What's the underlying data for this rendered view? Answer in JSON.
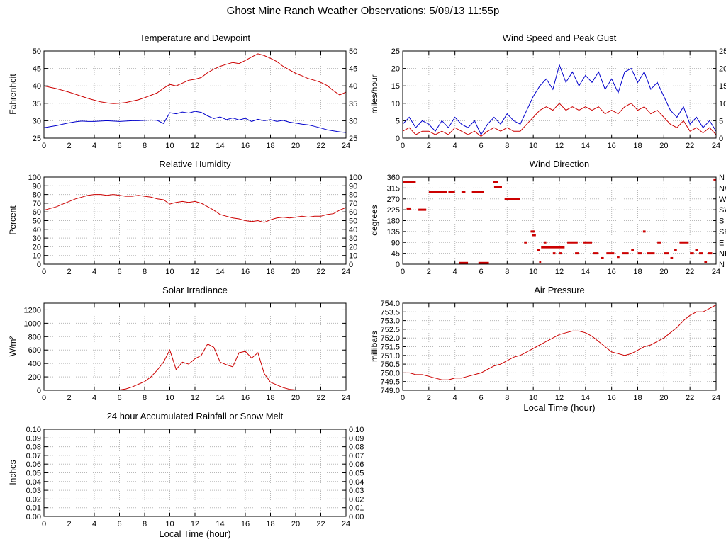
{
  "page_title": "Ghost Mine Ranch Weather Observations: 5/09/13 11:55p",
  "colors": {
    "red": "#cc0000",
    "blue": "#0000cc",
    "grid": "#b8b8b8",
    "axis": "#000000",
    "background": "#ffffff"
  },
  "chart_data": [
    {
      "id": "temperature-dewpoint",
      "type": "line",
      "title": "Temperature and Dewpoint",
      "ylabel": "Fahrenheit",
      "xlabel": "",
      "xlim": [
        0,
        24
      ],
      "xticks": [
        0,
        2,
        4,
        6,
        8,
        10,
        12,
        14,
        16,
        18,
        20,
        22,
        24
      ],
      "ylim": [
        25,
        50
      ],
      "yticks": [
        25,
        30,
        35,
        40,
        45,
        50
      ],
      "ytick_labels": [
        "25",
        "30",
        "35",
        "40",
        "45",
        "50"
      ],
      "ytick_labels_right": "same",
      "grid": true,
      "series": [
        {
          "name": "temperature",
          "color": "red",
          "x_start": 0,
          "x_step": 0.5,
          "y": [
            40.0,
            39.6,
            39.2,
            38.7,
            38.2,
            37.6,
            37.0,
            36.4,
            35.9,
            35.4,
            35.1,
            34.9,
            35.0,
            35.2,
            35.6,
            36.0,
            36.6,
            37.3,
            38.0,
            39.3,
            40.4,
            40.0,
            40.8,
            41.6,
            41.9,
            42.4,
            43.8,
            44.8,
            45.6,
            46.2,
            46.7,
            46.4,
            47.3,
            48.3,
            49.2,
            48.7,
            47.9,
            47.0,
            45.6,
            44.6,
            43.6,
            42.9,
            42.1,
            41.6,
            41.0,
            40.1,
            38.6,
            37.4,
            38.2
          ]
        },
        {
          "name": "dewpoint",
          "color": "blue",
          "x_start": 0,
          "x_step": 0.5,
          "y": [
            28.0,
            28.3,
            28.6,
            29.0,
            29.4,
            29.7,
            29.9,
            29.8,
            29.8,
            29.9,
            30.0,
            29.9,
            29.8,
            29.9,
            30.0,
            30.0,
            30.1,
            30.2,
            30.1,
            29.2,
            32.3,
            32.0,
            32.5,
            32.2,
            32.7,
            32.4,
            31.4,
            30.6,
            31.1,
            30.3,
            30.8,
            30.2,
            30.7,
            29.8,
            30.4,
            30.0,
            30.3,
            29.8,
            30.1,
            29.6,
            29.3,
            29.0,
            28.8,
            28.4,
            27.9,
            27.4,
            27.1,
            26.8,
            26.6
          ]
        }
      ]
    },
    {
      "id": "wind-speed-peak-gust",
      "type": "line",
      "title": "Wind Speed and Peak Gust",
      "ylabel": "miles/hour",
      "xlabel": "",
      "xlim": [
        0,
        24
      ],
      "xticks": [
        0,
        2,
        4,
        6,
        8,
        10,
        12,
        14,
        16,
        18,
        20,
        22,
        24
      ],
      "ylim": [
        0,
        25
      ],
      "yticks": [
        0,
        5,
        10,
        15,
        20,
        25
      ],
      "ytick_labels": [
        "0",
        "5",
        "10",
        "15",
        "20",
        "25"
      ],
      "ytick_labels_right": "same",
      "grid": true,
      "series": [
        {
          "name": "wind-speed",
          "color": "red",
          "x_start": 0,
          "x_step": 0.5,
          "y": [
            2,
            3,
            1,
            2,
            2,
            1,
            2,
            1,
            3,
            2,
            1,
            2,
            0.5,
            2,
            3,
            2,
            3,
            2,
            2,
            4,
            6,
            8,
            9,
            8,
            10,
            8,
            9,
            8,
            9,
            8,
            9,
            7,
            8,
            7,
            9,
            10,
            8,
            9,
            7,
            8,
            6,
            4,
            3,
            5,
            2,
            3,
            1.5,
            3,
            1
          ]
        },
        {
          "name": "peak-gust",
          "color": "blue",
          "x_start": 0,
          "x_step": 0.5,
          "y": [
            4,
            6,
            3,
            5,
            4,
            2,
            5,
            3,
            6,
            4,
            3,
            5,
            1,
            4,
            6,
            4,
            7,
            5,
            4,
            8,
            12,
            15,
            17,
            14,
            21,
            16,
            19,
            15,
            18,
            16,
            19,
            14,
            17,
            13,
            19,
            20,
            16,
            19,
            14,
            16,
            12,
            8,
            6,
            9,
            4,
            6,
            3,
            5,
            2
          ]
        }
      ]
    },
    {
      "id": "relative-humidity",
      "type": "line",
      "title": "Relative Humidity",
      "ylabel": "Percent",
      "xlabel": "",
      "xlim": [
        0,
        24
      ],
      "xticks": [
        0,
        2,
        4,
        6,
        8,
        10,
        12,
        14,
        16,
        18,
        20,
        22,
        24
      ],
      "ylim": [
        0,
        100
      ],
      "yticks": [
        0,
        10,
        20,
        30,
        40,
        50,
        60,
        70,
        80,
        90,
        100
      ],
      "ytick_labels": [
        "0",
        "10",
        "20",
        "30",
        "40",
        "50",
        "60",
        "70",
        "80",
        "90",
        "100"
      ],
      "ytick_labels_right": "same",
      "grid": true,
      "series": [
        {
          "name": "relative-humidity",
          "color": "red",
          "x_start": 0,
          "x_step": 0.5,
          "y": [
            62,
            64,
            66,
            69,
            72,
            75,
            77,
            79,
            80,
            80,
            79,
            80,
            79,
            78,
            78,
            79,
            78,
            77,
            75,
            74,
            69,
            71,
            72,
            71,
            72,
            70,
            66,
            62,
            57,
            55,
            53,
            52,
            50,
            49,
            50,
            48,
            51,
            53,
            54,
            53,
            54,
            55,
            54,
            55,
            55,
            57,
            58,
            62,
            65
          ]
        }
      ]
    },
    {
      "id": "wind-direction",
      "type": "scatter",
      "title": "Wind Direction",
      "ylabel": "degrees",
      "xlabel": "",
      "xlim": [
        0,
        24
      ],
      "xticks": [
        0,
        2,
        4,
        6,
        8,
        10,
        12,
        14,
        16,
        18,
        20,
        22,
        24
      ],
      "ylim": [
        0,
        360
      ],
      "yticks": [
        0,
        45,
        90,
        135,
        180,
        225,
        270,
        315,
        360
      ],
      "ytick_labels": [
        "0",
        "45",
        "90",
        "135",
        "180",
        "225",
        "270",
        "315",
        "360"
      ],
      "ytick_labels_right": [
        "N",
        "NE",
        "E",
        "SE",
        "S",
        "SW",
        "W",
        "NW",
        "N"
      ],
      "grid": true,
      "series": [
        {
          "name": "wind-direction",
          "color": "red",
          "segments": [
            [
              0.0,
              1.0,
              340
            ],
            [
              0.3,
              0.6,
              230
            ],
            [
              1.2,
              1.8,
              225
            ],
            [
              2.0,
              3.4,
              300
            ],
            [
              3.5,
              4.0,
              300
            ],
            [
              4.5,
              4.8,
              300
            ],
            [
              5.3,
              6.2,
              300
            ],
            [
              4.3,
              5.0,
              5
            ],
            [
              5.8,
              6.6,
              5
            ],
            [
              6.9,
              7.3,
              340
            ],
            [
              7.0,
              7.6,
              320
            ],
            [
              7.8,
              9.0,
              270
            ],
            [
              9.3,
              9.5,
              90
            ],
            [
              9.8,
              10.1,
              135
            ],
            [
              9.9,
              10.2,
              120
            ],
            [
              10.3,
              10.5,
              60
            ],
            [
              10.45,
              10.6,
              8
            ],
            [
              10.6,
              12.4,
              70
            ],
            [
              10.8,
              11.0,
              90
            ],
            [
              11.5,
              11.7,
              45
            ],
            [
              12.0,
              12.2,
              45
            ],
            [
              12.6,
              13.4,
              90
            ],
            [
              13.8,
              14.5,
              90
            ],
            [
              13.2,
              13.5,
              45
            ],
            [
              14.6,
              15.0,
              45
            ],
            [
              15.2,
              15.4,
              25
            ],
            [
              15.6,
              16.2,
              45
            ],
            [
              16.4,
              16.6,
              30
            ],
            [
              16.8,
              17.3,
              45
            ],
            [
              17.5,
              17.7,
              60
            ],
            [
              18.0,
              18.3,
              45
            ],
            [
              18.4,
              18.6,
              135
            ],
            [
              18.7,
              19.3,
              45
            ],
            [
              19.5,
              19.8,
              90
            ],
            [
              20.0,
              20.4,
              45
            ],
            [
              20.5,
              20.7,
              25
            ],
            [
              20.8,
              21.0,
              60
            ],
            [
              21.2,
              21.9,
              90
            ],
            [
              22.0,
              22.3,
              45
            ],
            [
              22.4,
              22.6,
              60
            ],
            [
              22.7,
              23.0,
              45
            ],
            [
              23.1,
              23.3,
              10
            ],
            [
              23.4,
              23.7,
              45
            ],
            [
              23.8,
              24.0,
              350
            ]
          ]
        }
      ]
    },
    {
      "id": "solar-irradiance",
      "type": "line",
      "title": "Solar Irradiance",
      "ylabel": "W/m²",
      "xlabel": "",
      "xlim": [
        0,
        24
      ],
      "xticks": [
        0,
        2,
        4,
        6,
        8,
        10,
        12,
        14,
        16,
        18,
        20,
        22,
        24
      ],
      "ylim": [
        0,
        1300
      ],
      "yticks": [
        0,
        200,
        400,
        600,
        800,
        1000,
        1200
      ],
      "ytick_labels": [
        "0",
        "200",
        "400",
        "600",
        "800",
        "1000",
        "1200"
      ],
      "ytick_labels_right": null,
      "grid": true,
      "series": [
        {
          "name": "solar-irradiance",
          "color": "red",
          "x_start": 0,
          "x_step": 0.5,
          "y": [
            0,
            0,
            0,
            0,
            0,
            0,
            0,
            0,
            0,
            0,
            0,
            0,
            5,
            20,
            50,
            90,
            130,
            200,
            300,
            420,
            600,
            310,
            420,
            390,
            470,
            520,
            690,
            640,
            420,
            380,
            350,
            560,
            580,
            480,
            560,
            250,
            120,
            80,
            40,
            15,
            5,
            0,
            0,
            0,
            0,
            0,
            0,
            0,
            0
          ]
        }
      ]
    },
    {
      "id": "air-pressure",
      "type": "line",
      "title": "Air Pressure",
      "ylabel": "millibars",
      "xlabel": "Local Time (hour)",
      "xlim": [
        0,
        24
      ],
      "xticks": [
        0,
        2,
        4,
        6,
        8,
        10,
        12,
        14,
        16,
        18,
        20,
        22,
        24
      ],
      "ylim": [
        749.0,
        754.0
      ],
      "yticks": [
        749.0,
        749.5,
        750.0,
        750.5,
        751.0,
        751.5,
        752.0,
        752.5,
        753.0,
        753.5,
        754.0
      ],
      "ytick_labels": [
        "749.0",
        "749.5",
        "750.0",
        "750.5",
        "751.0",
        "751.5",
        "752.0",
        "752.5",
        "753.0",
        "753.5",
        "754.0"
      ],
      "ytick_labels_right": null,
      "grid": true,
      "series": [
        {
          "name": "air-pressure",
          "color": "red",
          "x_start": 0,
          "x_step": 0.5,
          "y": [
            750.0,
            750.0,
            749.9,
            749.9,
            749.8,
            749.7,
            749.6,
            749.6,
            749.7,
            749.7,
            749.8,
            749.9,
            750.0,
            750.2,
            750.4,
            750.5,
            750.7,
            750.9,
            751.0,
            751.2,
            751.4,
            751.6,
            751.8,
            752.0,
            752.2,
            752.3,
            752.4,
            752.4,
            752.3,
            752.1,
            751.8,
            751.5,
            751.2,
            751.1,
            751.0,
            751.1,
            751.3,
            751.5,
            751.6,
            751.8,
            752.0,
            752.3,
            752.6,
            753.0,
            753.3,
            753.5,
            753.5,
            753.7,
            753.9
          ]
        }
      ]
    },
    {
      "id": "accumulated-rainfall",
      "type": "line",
      "title": "24 hour Accumulated Rainfall or Snow Melt",
      "ylabel": "Inches",
      "xlabel": "Local Time (hour)",
      "xlim": [
        0,
        24
      ],
      "xticks": [
        0,
        2,
        4,
        6,
        8,
        10,
        12,
        14,
        16,
        18,
        20,
        22,
        24
      ],
      "ylim": [
        0,
        0.1
      ],
      "yticks": [
        0,
        0.01,
        0.02,
        0.03,
        0.04,
        0.05,
        0.06,
        0.07,
        0.08,
        0.09,
        0.1
      ],
      "ytick_labels": [
        "0.00",
        "0.01",
        "0.02",
        "0.03",
        "0.04",
        "0.05",
        "0.06",
        "0.07",
        "0.08",
        "0.09",
        "0.10"
      ],
      "ytick_labels_right": "same",
      "grid": true,
      "series": [
        {
          "name": "rainfall",
          "color": "red",
          "x": [
            0,
            24
          ],
          "y": [
            0,
            0
          ]
        }
      ]
    }
  ]
}
